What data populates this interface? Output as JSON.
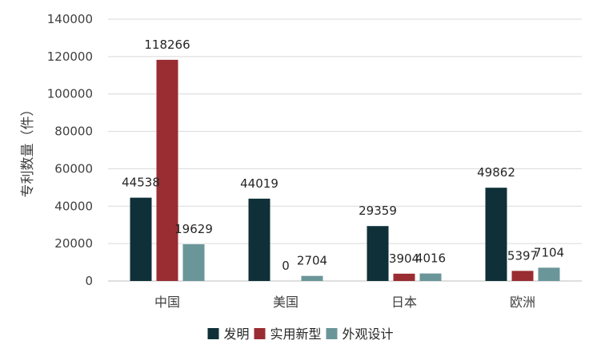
{
  "chart_data": {
    "type": "bar",
    "title": "",
    "xlabel": "",
    "ylabel": "专利数量（件）",
    "ylim": [
      0,
      140000
    ],
    "yticks": [
      0,
      20000,
      40000,
      60000,
      80000,
      100000,
      120000,
      140000
    ],
    "categories": [
      "中国",
      "美国",
      "日本",
      "欧洲"
    ],
    "series": [
      {
        "name": "发明",
        "color": "#0f3039",
        "values": [
          44538,
          44019,
          29359,
          49862
        ]
      },
      {
        "name": "实用新型",
        "color": "#992d32",
        "values": [
          118266,
          0,
          3904,
          5397
        ]
      },
      {
        "name": "外观设计",
        "color": "#6a9699",
        "values": [
          19629,
          2704,
          4016,
          7104
        ]
      }
    ],
    "grid": true,
    "legend": "bottom"
  }
}
